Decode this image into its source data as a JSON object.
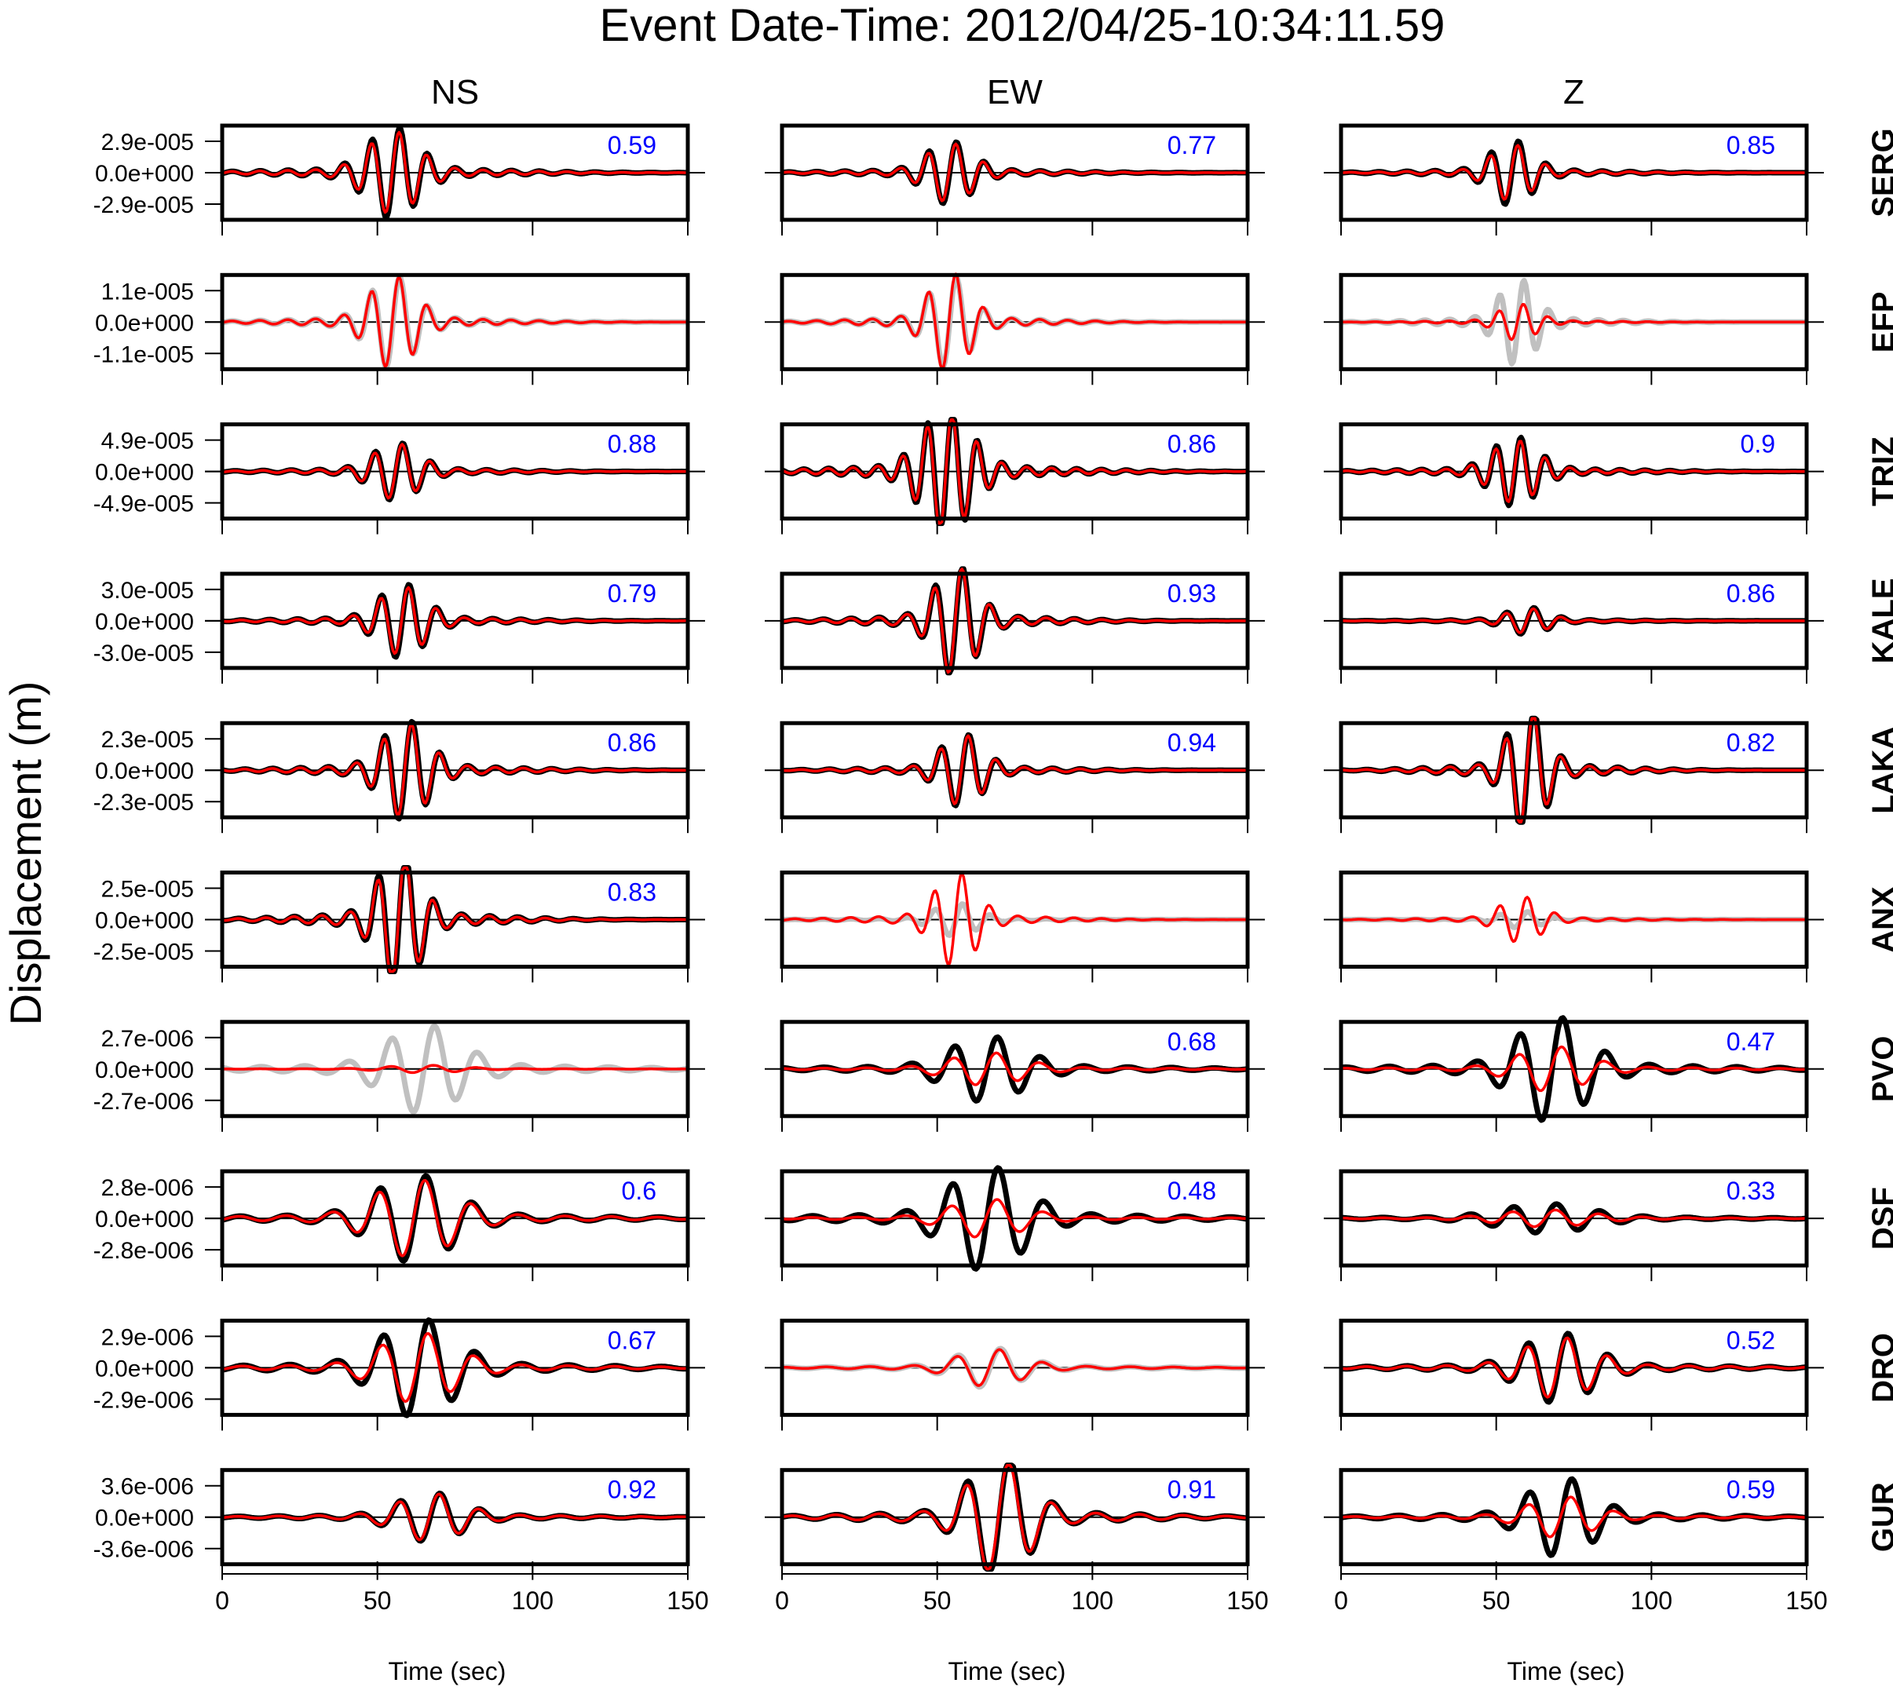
{
  "title": "Event Date-Time: 2012/04/25-10:34:11.59",
  "ylabel": "Displacement (m)",
  "xlabel": "Time (sec)",
  "components": [
    "NS",
    "EW",
    "Z"
  ],
  "stations": [
    "SERG",
    "EFP",
    "TRIZ",
    "KALE",
    "LAKA",
    "ANX",
    "PVO",
    "DSF",
    "DRO",
    "GUR"
  ],
  "colors": {
    "observed": "#000000",
    "synthetic": "#ff0000",
    "unused": "#c0c0c0",
    "score": "#0000ff"
  },
  "chart_data": {
    "type": "line",
    "x_range": [
      0,
      150
    ],
    "x_ticks": [
      0,
      50,
      100,
      150
    ],
    "rows": [
      {
        "station": "SERG",
        "yticks": [
          "2.9e-005",
          "0.0e+000",
          "-2.9e-005"
        ],
        "yscale": 2.9e-05,
        "panels": [
          {
            "component": "NS",
            "score": "0.59",
            "used": true,
            "obs_amp": 3.9e-05,
            "syn_amp": 3.5e-05,
            "center": 55,
            "width": 11,
            "period": 9
          },
          {
            "component": "EW",
            "score": "0.77",
            "used": true,
            "obs_amp": 2.7e-05,
            "syn_amp": 2.5e-05,
            "center": 54,
            "width": 10,
            "period": 9
          },
          {
            "component": "Z",
            "score": "0.85",
            "used": true,
            "obs_amp": 2.8e-05,
            "syn_amp": 2.4e-05,
            "center": 55,
            "width": 9,
            "period": 9
          }
        ]
      },
      {
        "station": "EFP",
        "yticks": [
          "1.1e-005",
          "0.0e+000",
          "-1.1e-005"
        ],
        "yscale": 1.1e-05,
        "panels": [
          {
            "component": "NS",
            "score": "",
            "used": false,
            "obs_amp": 1.5e-05,
            "syn_amp": 1.5e-05,
            "center": 55,
            "width": 10,
            "period": 9
          },
          {
            "component": "EW",
            "score": "",
            "used": false,
            "obs_amp": 1.5e-05,
            "syn_amp": 1.6e-05,
            "center": 54,
            "width": 9,
            "period": 9
          },
          {
            "component": "Z",
            "score": "",
            "used": false,
            "obs_amp": 1.4e-05,
            "syn_amp": 6e-06,
            "center": 57,
            "width": 8,
            "period": 8
          }
        ]
      },
      {
        "station": "TRIZ",
        "yticks": [
          "4.9e-005",
          "0.0e+000",
          "-4.9e-005"
        ],
        "yscale": 4.9e-05,
        "panels": [
          {
            "component": "NS",
            "score": "0.88",
            "used": true,
            "obs_amp": 4.2e-05,
            "syn_amp": 4e-05,
            "center": 56,
            "width": 10,
            "period": 9
          },
          {
            "component": "EW",
            "score": "0.86",
            "used": true,
            "obs_amp": 9e-05,
            "syn_amp": 8.5e-05,
            "center": 53,
            "width": 11,
            "period": 8
          },
          {
            "component": "Z",
            "score": "0.9",
            "used": true,
            "obs_amp": 5e-05,
            "syn_amp": 4.5e-05,
            "center": 56,
            "width": 10,
            "period": 8
          }
        ]
      },
      {
        "station": "KALE",
        "yticks": [
          "3.0e-005",
          "0.0e+000",
          "-3.0e-005"
        ],
        "yscale": 3e-05,
        "panels": [
          {
            "component": "NS",
            "score": "0.79",
            "used": true,
            "obs_amp": 3.3e-05,
            "syn_amp": 3e-05,
            "center": 58,
            "width": 10,
            "period": 9
          },
          {
            "component": "EW",
            "score": "0.93",
            "used": true,
            "obs_amp": 5e-05,
            "syn_amp": 4.8e-05,
            "center": 56,
            "width": 9,
            "period": 9
          },
          {
            "component": "Z",
            "score": "0.86",
            "used": true,
            "obs_amp": 1.2e-05,
            "syn_amp": 1.1e-05,
            "center": 60,
            "width": 9,
            "period": 9
          }
        ]
      },
      {
        "station": "LAKA",
        "yticks": [
          "2.3e-005",
          "0.0e+000",
          "-2.3e-005"
        ],
        "yscale": 2.3e-05,
        "panels": [
          {
            "component": "NS",
            "score": "0.86",
            "used": true,
            "obs_amp": 3.4e-05,
            "syn_amp": 3.2e-05,
            "center": 59,
            "width": 10,
            "period": 9
          },
          {
            "component": "EW",
            "score": "0.94",
            "used": true,
            "obs_amp": 2.5e-05,
            "syn_amp": 2.4e-05,
            "center": 58,
            "width": 9,
            "period": 9
          },
          {
            "component": "Z",
            "score": "0.82",
            "used": true,
            "obs_amp": 4.4e-05,
            "syn_amp": 4e-05,
            "center": 60,
            "width": 8,
            "period": 9
          }
        ]
      },
      {
        "station": "ANX",
        "yticks": [
          "2.5e-005",
          "0.0e+000",
          "-2.5e-005"
        ],
        "yscale": 2.5e-05,
        "panels": [
          {
            "component": "NS",
            "score": "0.83",
            "used": true,
            "obs_amp": 5.2e-05,
            "syn_amp": 4.8e-05,
            "center": 57,
            "width": 9,
            "period": 9
          },
          {
            "component": "EW",
            "score": "",
            "used": false,
            "obs_amp": 1.2e-05,
            "syn_amp": 3.5e-05,
            "center": 56,
            "width": 9,
            "period": 9
          },
          {
            "component": "Z",
            "score": "",
            "used": false,
            "obs_amp": 6e-06,
            "syn_amp": 1.7e-05,
            "center": 58,
            "width": 9,
            "period": 9
          }
        ]
      },
      {
        "station": "PVO",
        "yticks": [
          "2.7e-006",
          "0.0e+000",
          "-2.7e-006"
        ],
        "yscale": 2.7e-06,
        "panels": [
          {
            "component": "NS",
            "score": "",
            "used": false,
            "obs_amp": 3.5e-06,
            "syn_amp": 3e-07,
            "center": 65,
            "width": 16,
            "period": 14
          },
          {
            "component": "EW",
            "score": "0.68",
            "used": true,
            "obs_amp": 2.6e-06,
            "syn_amp": 1.3e-06,
            "center": 66,
            "width": 16,
            "period": 14
          },
          {
            "component": "Z",
            "score": "0.47",
            "used": true,
            "obs_amp": 4.2e-06,
            "syn_amp": 1.8e-06,
            "center": 68,
            "width": 15,
            "period": 14
          }
        ]
      },
      {
        "station": "DSF",
        "yticks": [
          "2.8e-006",
          "0.0e+000",
          "-2.8e-006"
        ],
        "yscale": 2.8e-06,
        "panels": [
          {
            "component": "NS",
            "score": "0.6",
            "used": true,
            "obs_amp": 3.6e-06,
            "syn_amp": 3.2e-06,
            "center": 62,
            "width": 17,
            "period": 15
          },
          {
            "component": "EW",
            "score": "0.48",
            "used": true,
            "obs_amp": 4.3e-06,
            "syn_amp": 1.6e-06,
            "center": 66,
            "width": 16,
            "period": 15
          },
          {
            "component": "Z",
            "score": "0.33",
            "used": true,
            "obs_amp": 1.2e-06,
            "syn_amp": 7e-07,
            "center": 66,
            "width": 20,
            "period": 14
          }
        ]
      },
      {
        "station": "DRO",
        "yticks": [
          "2.9e-006",
          "0.0e+000",
          "-2.9e-006"
        ],
        "yscale": 2.9e-06,
        "panels": [
          {
            "component": "NS",
            "score": "0.67",
            "used": true,
            "obs_amp": 4.2e-06,
            "syn_amp": 3e-06,
            "center": 63,
            "width": 16,
            "period": 15
          },
          {
            "component": "EW",
            "score": "",
            "used": false,
            "obs_amp": 1.7e-06,
            "syn_amp": 1.6e-06,
            "center": 67,
            "width": 14,
            "period": 14
          },
          {
            "component": "Z",
            "score": "0.52",
            "used": true,
            "obs_amp": 3e-06,
            "syn_amp": 2.6e-06,
            "center": 70,
            "width": 15,
            "period": 13
          }
        ]
      },
      {
        "station": "GUR",
        "yticks": [
          "3.6e-006",
          "0.0e+000",
          "-3.6e-006"
        ],
        "yscale": 3.6e-06,
        "panels": [
          {
            "component": "NS",
            "score": "0.92",
            "used": true,
            "obs_amp": 2.6e-06,
            "syn_amp": 2.5e-06,
            "center": 67,
            "width": 14,
            "period": 13
          },
          {
            "component": "EW",
            "score": "0.91",
            "used": true,
            "obs_amp": 6.5e-06,
            "syn_amp": 6e-06,
            "center": 70,
            "width": 13,
            "period": 14
          },
          {
            "component": "Z",
            "score": "0.59",
            "used": true,
            "obs_amp": 4.2e-06,
            "syn_amp": 2.2e-06,
            "center": 71,
            "width": 14,
            "period": 14
          }
        ]
      }
    ]
  }
}
